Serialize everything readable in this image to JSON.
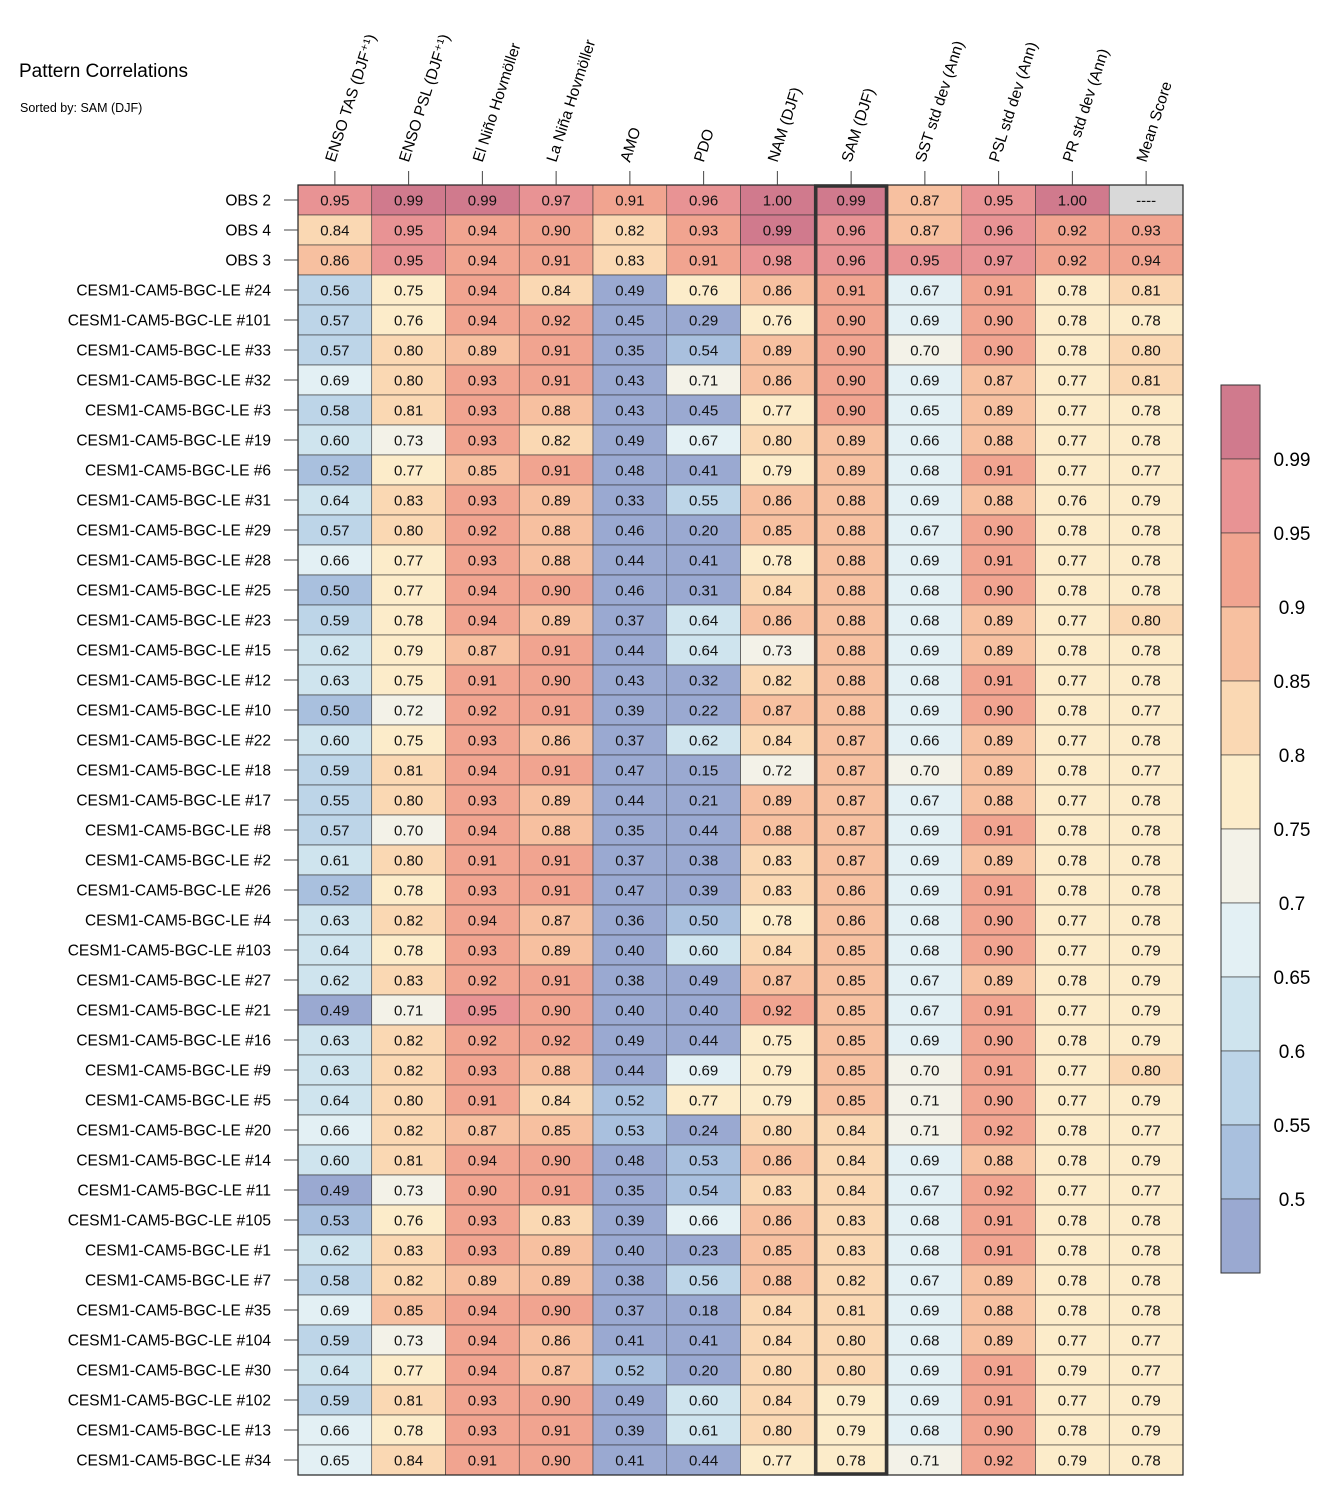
{
  "chart_data": {
    "type": "heatmap",
    "title": "Pattern Correlations",
    "subtitle": "Sorted by: SAM (DJF)",
    "columns": [
      "ENSO TAS (DJF⁺¹)",
      "ENSO PSL (DJF⁺¹)",
      "El Niño Hovmöller",
      "La Niña Hovmöller",
      "AMO",
      "PDO",
      "NAM (DJF)",
      "SAM (DJF)",
      "SST std dev (Ann)",
      "PSL std dev (Ann)",
      "PR std dev (Ann)",
      "Mean Score"
    ],
    "highlighted_column": "SAM (DJF)",
    "rows": [
      "OBS 2",
      "OBS 4",
      "OBS 3",
      "CESM1-CAM5-BGC-LE #24",
      "CESM1-CAM5-BGC-LE #101",
      "CESM1-CAM5-BGC-LE #33",
      "CESM1-CAM5-BGC-LE #32",
      "CESM1-CAM5-BGC-LE #3",
      "CESM1-CAM5-BGC-LE #19",
      "CESM1-CAM5-BGC-LE #6",
      "CESM1-CAM5-BGC-LE #31",
      "CESM1-CAM5-BGC-LE #29",
      "CESM1-CAM5-BGC-LE #28",
      "CESM1-CAM5-BGC-LE #25",
      "CESM1-CAM5-BGC-LE #23",
      "CESM1-CAM5-BGC-LE #15",
      "CESM1-CAM5-BGC-LE #12",
      "CESM1-CAM5-BGC-LE #10",
      "CESM1-CAM5-BGC-LE #22",
      "CESM1-CAM5-BGC-LE #18",
      "CESM1-CAM5-BGC-LE #17",
      "CESM1-CAM5-BGC-LE #8",
      "CESM1-CAM5-BGC-LE #2",
      "CESM1-CAM5-BGC-LE #26",
      "CESM1-CAM5-BGC-LE #4",
      "CESM1-CAM5-BGC-LE #103",
      "CESM1-CAM5-BGC-LE #27",
      "CESM1-CAM5-BGC-LE #21",
      "CESM1-CAM5-BGC-LE #16",
      "CESM1-CAM5-BGC-LE #9",
      "CESM1-CAM5-BGC-LE #5",
      "CESM1-CAM5-BGC-LE #20",
      "CESM1-CAM5-BGC-LE #14",
      "CESM1-CAM5-BGC-LE #11",
      "CESM1-CAM5-BGC-LE #105",
      "CESM1-CAM5-BGC-LE #1",
      "CESM1-CAM5-BGC-LE #7",
      "CESM1-CAM5-BGC-LE #35",
      "CESM1-CAM5-BGC-LE #104",
      "CESM1-CAM5-BGC-LE #30",
      "CESM1-CAM5-BGC-LE #102",
      "CESM1-CAM5-BGC-LE #13",
      "CESM1-CAM5-BGC-LE #34"
    ],
    "values": [
      [
        "0.95",
        "0.99",
        "0.99",
        "0.97",
        "0.91",
        "0.96",
        "1.00",
        "0.99",
        "0.87",
        "0.95",
        "1.00",
        "----"
      ],
      [
        "0.84",
        "0.95",
        "0.94",
        "0.90",
        "0.82",
        "0.93",
        "0.99",
        "0.96",
        "0.87",
        "0.96",
        "0.92",
        "0.93"
      ],
      [
        "0.86",
        "0.95",
        "0.94",
        "0.91",
        "0.83",
        "0.91",
        "0.98",
        "0.96",
        "0.95",
        "0.97",
        "0.92",
        "0.94"
      ],
      [
        "0.56",
        "0.75",
        "0.94",
        "0.84",
        "0.49",
        "0.76",
        "0.86",
        "0.91",
        "0.67",
        "0.91",
        "0.78",
        "0.81"
      ],
      [
        "0.57",
        "0.76",
        "0.94",
        "0.92",
        "0.45",
        "0.29",
        "0.76",
        "0.90",
        "0.69",
        "0.90",
        "0.78",
        "0.78"
      ],
      [
        "0.57",
        "0.80",
        "0.89",
        "0.91",
        "0.35",
        "0.54",
        "0.89",
        "0.90",
        "0.70",
        "0.90",
        "0.78",
        "0.80"
      ],
      [
        "0.69",
        "0.80",
        "0.93",
        "0.91",
        "0.43",
        "0.71",
        "0.86",
        "0.90",
        "0.69",
        "0.87",
        "0.77",
        "0.81"
      ],
      [
        "0.58",
        "0.81",
        "0.93",
        "0.88",
        "0.43",
        "0.45",
        "0.77",
        "0.90",
        "0.65",
        "0.89",
        "0.77",
        "0.78"
      ],
      [
        "0.60",
        "0.73",
        "0.93",
        "0.82",
        "0.49",
        "0.67",
        "0.80",
        "0.89",
        "0.66",
        "0.88",
        "0.77",
        "0.78"
      ],
      [
        "0.52",
        "0.77",
        "0.85",
        "0.91",
        "0.48",
        "0.41",
        "0.79",
        "0.89",
        "0.68",
        "0.91",
        "0.77",
        "0.77"
      ],
      [
        "0.64",
        "0.83",
        "0.93",
        "0.89",
        "0.33",
        "0.55",
        "0.86",
        "0.88",
        "0.69",
        "0.88",
        "0.76",
        "0.79"
      ],
      [
        "0.57",
        "0.80",
        "0.92",
        "0.88",
        "0.46",
        "0.20",
        "0.85",
        "0.88",
        "0.67",
        "0.90",
        "0.78",
        "0.78"
      ],
      [
        "0.66",
        "0.77",
        "0.93",
        "0.88",
        "0.44",
        "0.41",
        "0.78",
        "0.88",
        "0.69",
        "0.91",
        "0.77",
        "0.78"
      ],
      [
        "0.50",
        "0.77",
        "0.94",
        "0.90",
        "0.46",
        "0.31",
        "0.84",
        "0.88",
        "0.68",
        "0.90",
        "0.78",
        "0.78"
      ],
      [
        "0.59",
        "0.78",
        "0.94",
        "0.89",
        "0.37",
        "0.64",
        "0.86",
        "0.88",
        "0.68",
        "0.89",
        "0.77",
        "0.80"
      ],
      [
        "0.62",
        "0.79",
        "0.87",
        "0.91",
        "0.44",
        "0.64",
        "0.73",
        "0.88",
        "0.69",
        "0.89",
        "0.78",
        "0.78"
      ],
      [
        "0.63",
        "0.75",
        "0.91",
        "0.90",
        "0.43",
        "0.32",
        "0.82",
        "0.88",
        "0.68",
        "0.91",
        "0.77",
        "0.78"
      ],
      [
        "0.50",
        "0.72",
        "0.92",
        "0.91",
        "0.39",
        "0.22",
        "0.87",
        "0.88",
        "0.69",
        "0.90",
        "0.78",
        "0.77"
      ],
      [
        "0.60",
        "0.75",
        "0.93",
        "0.86",
        "0.37",
        "0.62",
        "0.84",
        "0.87",
        "0.66",
        "0.89",
        "0.77",
        "0.78"
      ],
      [
        "0.59",
        "0.81",
        "0.94",
        "0.91",
        "0.47",
        "0.15",
        "0.72",
        "0.87",
        "0.70",
        "0.89",
        "0.78",
        "0.77"
      ],
      [
        "0.55",
        "0.80",
        "0.93",
        "0.89",
        "0.44",
        "0.21",
        "0.89",
        "0.87",
        "0.67",
        "0.88",
        "0.77",
        "0.78"
      ],
      [
        "0.57",
        "0.70",
        "0.94",
        "0.88",
        "0.35",
        "0.44",
        "0.88",
        "0.87",
        "0.69",
        "0.91",
        "0.78",
        "0.78"
      ],
      [
        "0.61",
        "0.80",
        "0.91",
        "0.91",
        "0.37",
        "0.38",
        "0.83",
        "0.87",
        "0.69",
        "0.89",
        "0.78",
        "0.78"
      ],
      [
        "0.52",
        "0.78",
        "0.93",
        "0.91",
        "0.47",
        "0.39",
        "0.83",
        "0.86",
        "0.69",
        "0.91",
        "0.78",
        "0.78"
      ],
      [
        "0.63",
        "0.82",
        "0.94",
        "0.87",
        "0.36",
        "0.50",
        "0.78",
        "0.86",
        "0.68",
        "0.90",
        "0.77",
        "0.78"
      ],
      [
        "0.64",
        "0.78",
        "0.93",
        "0.89",
        "0.40",
        "0.60",
        "0.84",
        "0.85",
        "0.68",
        "0.90",
        "0.77",
        "0.79"
      ],
      [
        "0.62",
        "0.83",
        "0.92",
        "0.91",
        "0.38",
        "0.49",
        "0.87",
        "0.85",
        "0.67",
        "0.89",
        "0.78",
        "0.79"
      ],
      [
        "0.49",
        "0.71",
        "0.95",
        "0.90",
        "0.40",
        "0.40",
        "0.92",
        "0.85",
        "0.67",
        "0.91",
        "0.77",
        "0.79"
      ],
      [
        "0.63",
        "0.82",
        "0.92",
        "0.92",
        "0.49",
        "0.44",
        "0.75",
        "0.85",
        "0.69",
        "0.90",
        "0.78",
        "0.79"
      ],
      [
        "0.63",
        "0.82",
        "0.93",
        "0.88",
        "0.44",
        "0.69",
        "0.79",
        "0.85",
        "0.70",
        "0.91",
        "0.77",
        "0.80"
      ],
      [
        "0.64",
        "0.80",
        "0.91",
        "0.84",
        "0.52",
        "0.77",
        "0.79",
        "0.85",
        "0.71",
        "0.90",
        "0.77",
        "0.79"
      ],
      [
        "0.66",
        "0.82",
        "0.87",
        "0.85",
        "0.53",
        "0.24",
        "0.80",
        "0.84",
        "0.71",
        "0.92",
        "0.78",
        "0.77"
      ],
      [
        "0.60",
        "0.81",
        "0.94",
        "0.90",
        "0.48",
        "0.53",
        "0.86",
        "0.84",
        "0.69",
        "0.88",
        "0.78",
        "0.79"
      ],
      [
        "0.49",
        "0.73",
        "0.90",
        "0.91",
        "0.35",
        "0.54",
        "0.83",
        "0.84",
        "0.67",
        "0.92",
        "0.77",
        "0.77"
      ],
      [
        "0.53",
        "0.76",
        "0.93",
        "0.83",
        "0.39",
        "0.66",
        "0.86",
        "0.83",
        "0.68",
        "0.91",
        "0.78",
        "0.78"
      ],
      [
        "0.62",
        "0.83",
        "0.93",
        "0.89",
        "0.40",
        "0.23",
        "0.85",
        "0.83",
        "0.68",
        "0.91",
        "0.78",
        "0.78"
      ],
      [
        "0.58",
        "0.82",
        "0.89",
        "0.89",
        "0.38",
        "0.56",
        "0.88",
        "0.82",
        "0.67",
        "0.89",
        "0.78",
        "0.78"
      ],
      [
        "0.69",
        "0.85",
        "0.94",
        "0.90",
        "0.37",
        "0.18",
        "0.84",
        "0.81",
        "0.69",
        "0.88",
        "0.78",
        "0.78"
      ],
      [
        "0.59",
        "0.73",
        "0.94",
        "0.86",
        "0.41",
        "0.41",
        "0.84",
        "0.80",
        "0.68",
        "0.89",
        "0.77",
        "0.77"
      ],
      [
        "0.64",
        "0.77",
        "0.94",
        "0.87",
        "0.52",
        "0.20",
        "0.80",
        "0.80",
        "0.69",
        "0.91",
        "0.79",
        "0.77"
      ],
      [
        "0.59",
        "0.81",
        "0.93",
        "0.90",
        "0.49",
        "0.60",
        "0.84",
        "0.79",
        "0.69",
        "0.91",
        "0.77",
        "0.79"
      ],
      [
        "0.66",
        "0.78",
        "0.93",
        "0.91",
        "0.39",
        "0.61",
        "0.80",
        "0.79",
        "0.68",
        "0.90",
        "0.78",
        "0.79"
      ],
      [
        "0.65",
        "0.84",
        "0.91",
        "0.90",
        "0.41",
        "0.44",
        "0.77",
        "0.78",
        "0.71",
        "0.92",
        "0.79",
        "0.78"
      ]
    ],
    "colorbar": {
      "tick_labels": [
        "0.99",
        "0.95",
        "0.9",
        "0.85",
        "0.8",
        "0.75",
        "0.7",
        "0.65",
        "0.6",
        "0.55",
        "0.5"
      ],
      "bins_top_to_bottom": [
        "#d07a8d",
        "#e89394",
        "#f1a490",
        "#f7c0a0",
        "#fad8b3",
        "#fcecca",
        "#f3f2e8",
        "#e3f0f4",
        "#cfe4ee",
        "#bdd5e8",
        "#a9c0de",
        "#9aa9d1"
      ],
      "missing_color": "#d9d9d9"
    }
  }
}
